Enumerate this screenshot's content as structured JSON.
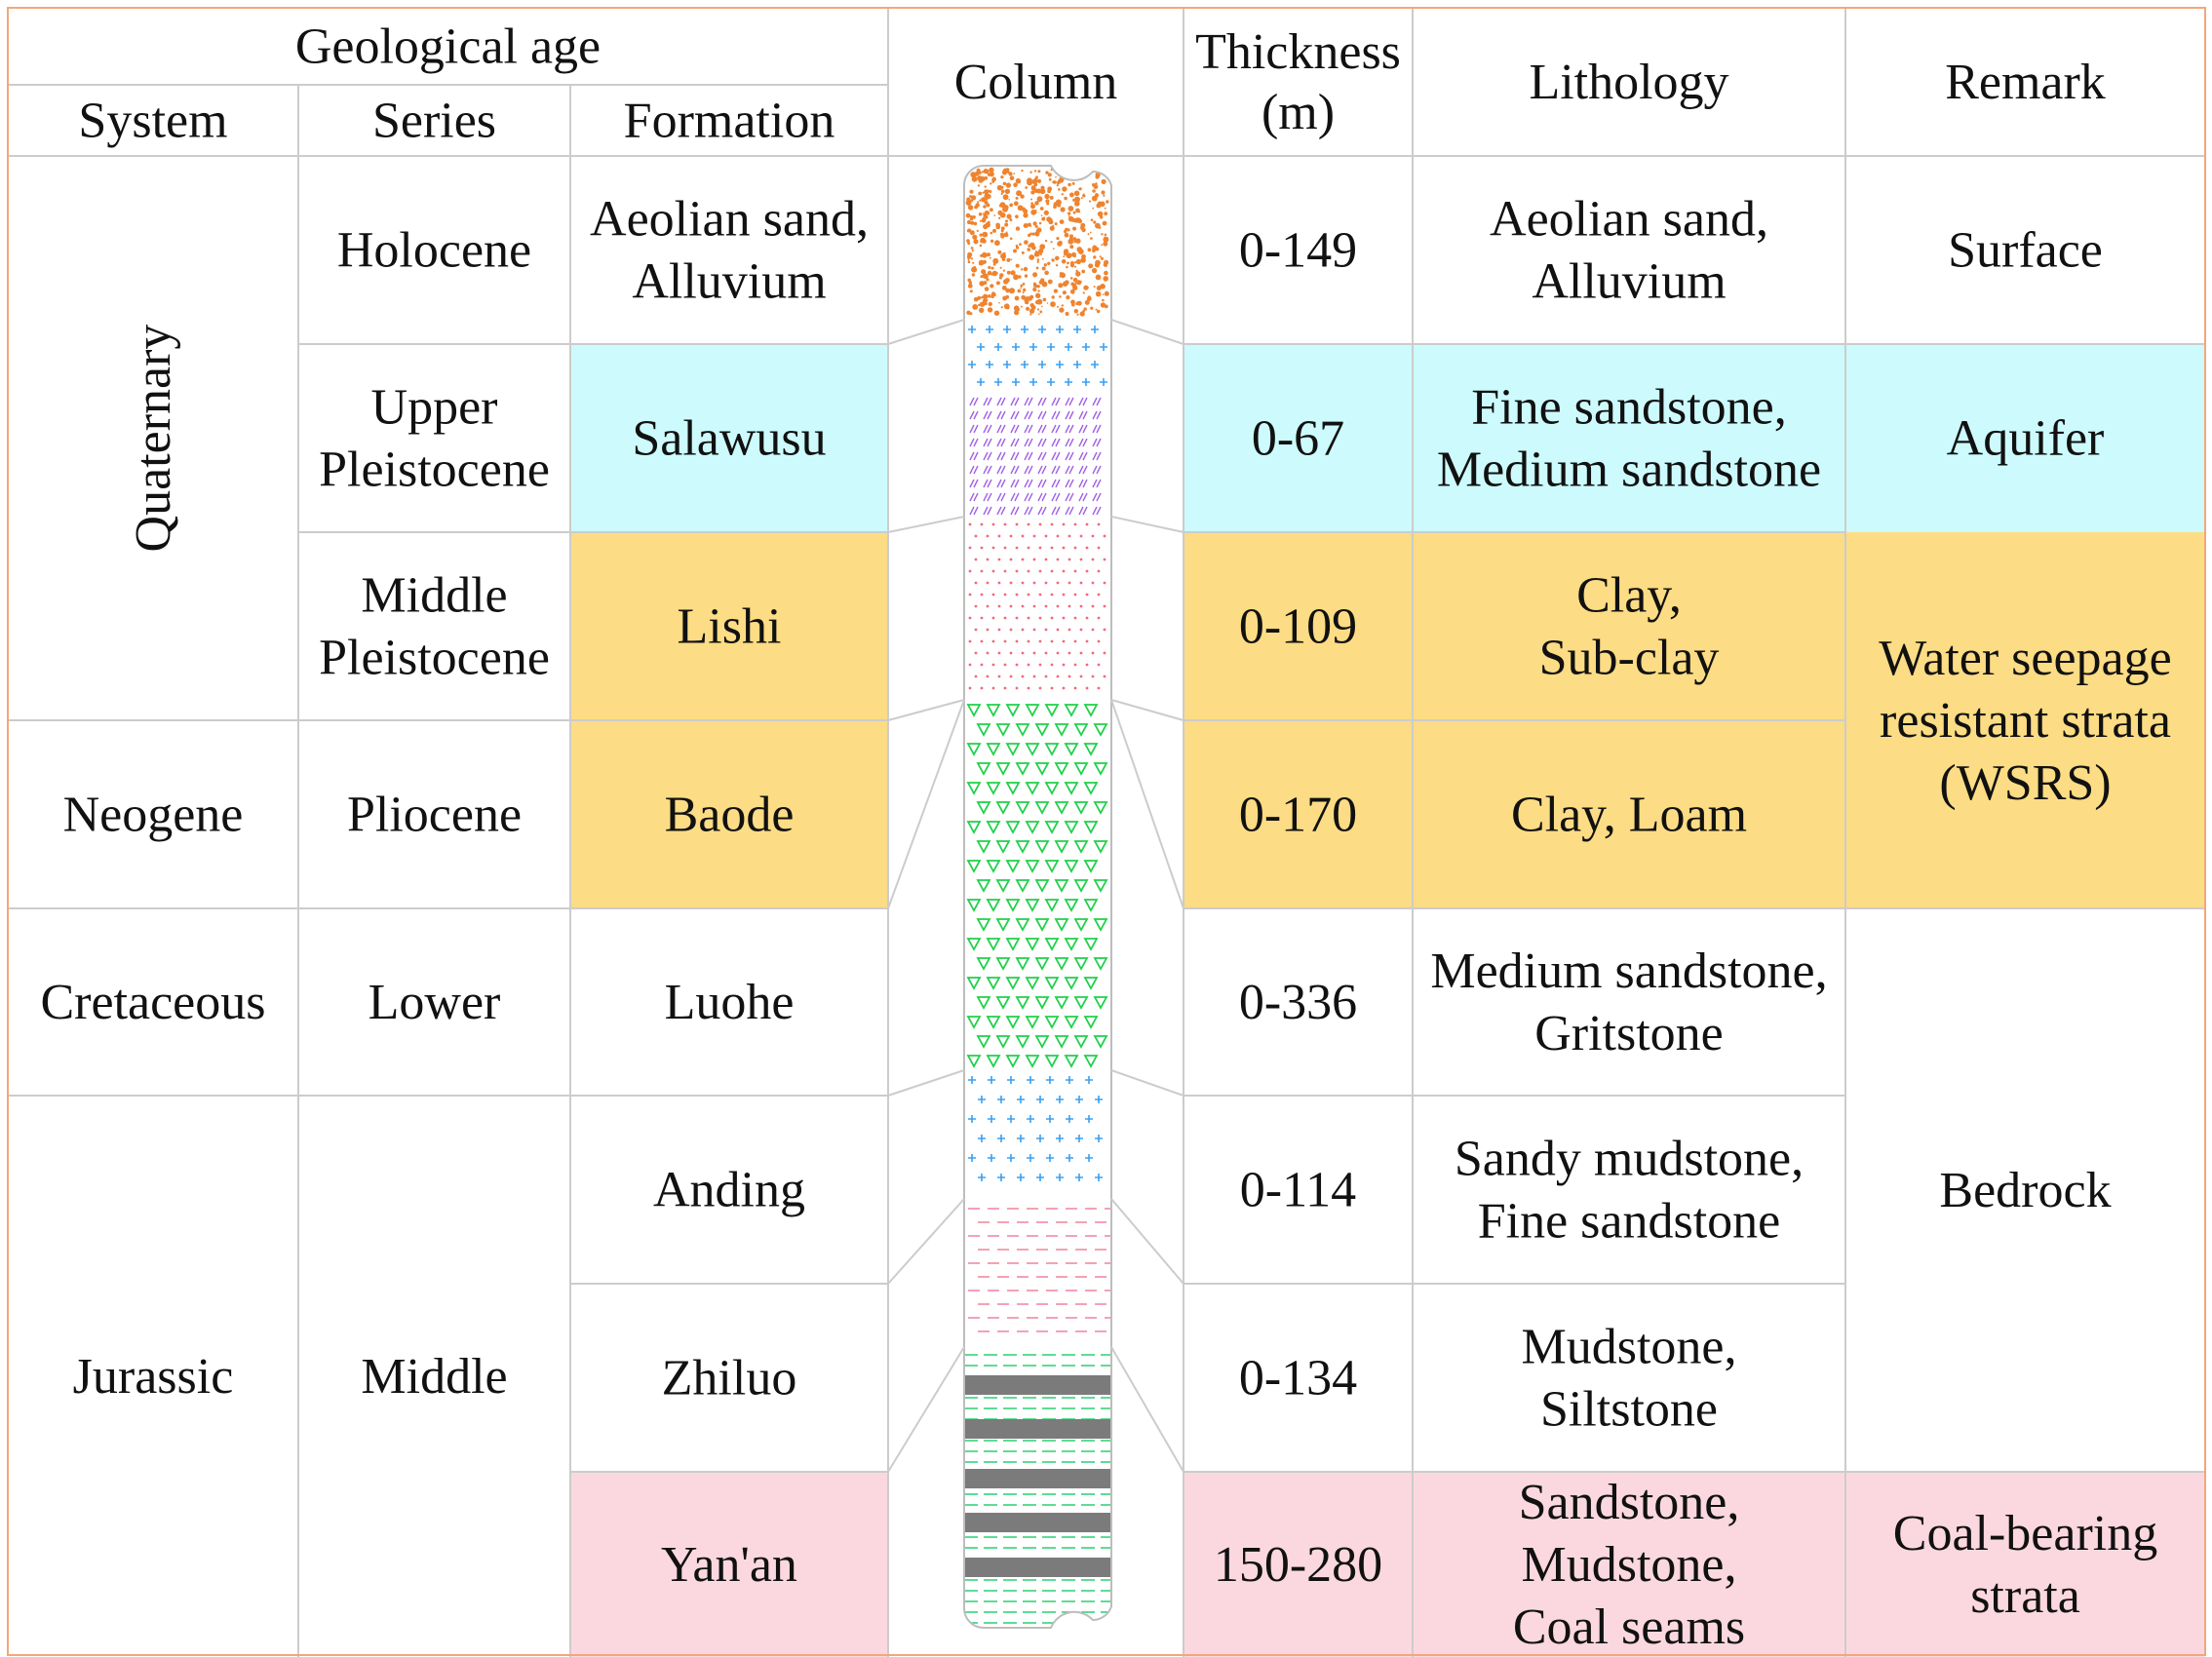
{
  "colors": {
    "aquifer": "#cdfbfd",
    "seepage": "#fcdc84",
    "coal": "#fbd8e0",
    "grid": "#cccccc",
    "outer_border": "#f4a67a",
    "sand_dots": "#ee8430",
    "blue_plus": "#3aa0f0",
    "purple_hatch": "#a064e6",
    "red_dots": "#f06a78",
    "green_triangles": "#20d04a",
    "pink_dashes": "#f28aa2",
    "green_lines": "#28d070",
    "coal_seam": "#7b7b7b"
  },
  "header": {
    "geological_age": "Geological age",
    "system": "System",
    "series": "Series",
    "formation": "Formation",
    "column": "Column",
    "thickness": [
      "Thickness",
      "(m)"
    ],
    "lithology": "Lithology",
    "remark": "Remark"
  },
  "systems": {
    "quaternary": "Quaternary",
    "neogene": "Neogene",
    "cretaceous": "Cretaceous",
    "jurassic": "Jurassic"
  },
  "series": {
    "holocene": [
      "Holocene"
    ],
    "upper_pleistocene": [
      "Upper",
      "Pleistocene"
    ],
    "middle_pleistocene": [
      "Middle",
      "Pleistocene"
    ],
    "pliocene": [
      "Pliocene"
    ],
    "lower": [
      "Lower"
    ],
    "middle": [
      "Middle"
    ]
  },
  "layers": [
    {
      "formation": [
        "Aeolian sand,",
        "Alluvium"
      ],
      "thickness": "0-149",
      "lithology": [
        "Aeolian sand,",
        "Alluvium"
      ]
    },
    {
      "formation": [
        "Salawusu"
      ],
      "thickness": "0-67",
      "lithology": [
        "Fine sandstone,",
        "Medium sandstone"
      ]
    },
    {
      "formation": [
        "Lishi"
      ],
      "thickness": "0-109",
      "lithology": [
        "Clay,",
        "Sub-clay"
      ]
    },
    {
      "formation": [
        "Baode"
      ],
      "thickness": "0-170",
      "lithology": [
        "Clay, Loam"
      ]
    },
    {
      "formation": [
        "Luohe"
      ],
      "thickness": "0-336",
      "lithology": [
        "Medium sandstone,",
        "Gritstone"
      ]
    },
    {
      "formation": [
        "Anding"
      ],
      "thickness": "0-114",
      "lithology": [
        "Sandy mudstone,",
        "Fine sandstone"
      ]
    },
    {
      "formation": [
        "Zhiluo"
      ],
      "thickness": "0-134",
      "lithology": [
        "Mudstone,",
        "Siltstone"
      ]
    },
    {
      "formation": [
        "Yan'an"
      ],
      "thickness": "150-280",
      "lithology": [
        "Sandstone,",
        "Mudstone,",
        "Coal seams"
      ]
    }
  ],
  "remarks": {
    "surface": [
      "Surface"
    ],
    "aquifer": [
      "Aquifer"
    ],
    "wsrs": [
      "Water seepage",
      "resistant strata",
      "(WSRS)"
    ],
    "bedrock": [
      "Bedrock"
    ],
    "coal_bearing": [
      "Coal-bearing",
      "strata"
    ]
  }
}
